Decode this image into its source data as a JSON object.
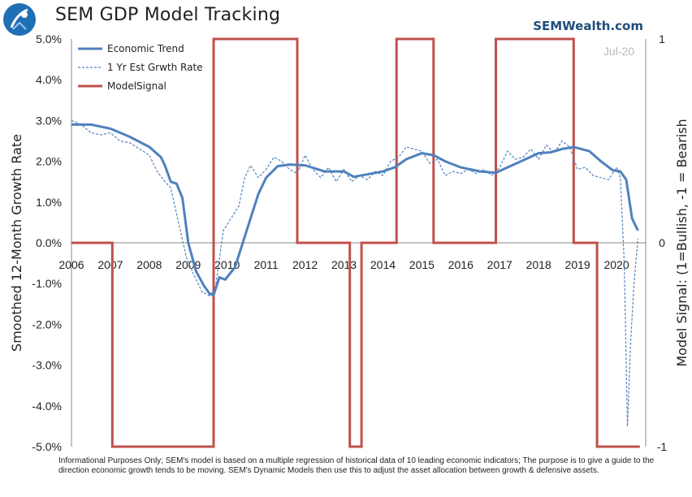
{
  "header": {
    "title": "SEM GDP Model Tracking",
    "brand": "SEMWealth.com"
  },
  "footnote": "Informational Purposes Only; SEM's model is based on a multiple regression of historical data of 10 leading economic indicators; The purpose is to give a guide to the direction economic growth tends to be moving. SEM's Dynamic Models then use this to adjust the asset allocation between growth & defensive assets.",
  "colors": {
    "trend": "#4f81bd",
    "estimate": "#4f81bd",
    "signal": "#c0504d",
    "axis": "#888888",
    "brand": "#1f4e79"
  },
  "chart_data": {
    "type": "line",
    "date_label": "Jul-20",
    "ylabel": "Smoothed 12-Month Growth Rate",
    "y2label": "Model Signal: (1=Bullish, -1 = Bearish",
    "ylim": [
      -5.0,
      5.0
    ],
    "y2lim": [
      -1,
      1
    ],
    "xlim": [
      2006.0,
      2020.75
    ],
    "yticks": [
      "5.0%",
      "4.0%",
      "3.0%",
      "2.0%",
      "1.0%",
      "0.0%",
      "-1.0%",
      "-2.0%",
      "-3.0%",
      "-4.0%",
      "-5.0%"
    ],
    "y2ticks": [
      "1",
      "0",
      "-1"
    ],
    "xticks": [
      "2006",
      "2007",
      "2008",
      "2009",
      "2010",
      "2011",
      "2012",
      "2013",
      "2014",
      "2015",
      "2016",
      "2017",
      "2018",
      "2019",
      "2020"
    ],
    "legend_position": "top-left",
    "grid": false,
    "series": [
      {
        "name": "Economic Trend",
        "style": "solid",
        "axis": "left",
        "x": [
          2006.0,
          2006.5,
          2007.0,
          2007.5,
          2008.0,
          2008.3,
          2008.4,
          2008.55,
          2008.7,
          2008.85,
          2009.0,
          2009.2,
          2009.4,
          2009.55,
          2009.65,
          2009.8,
          2009.95,
          2010.2,
          2010.5,
          2010.8,
          2011.0,
          2011.3,
          2011.6,
          2012.0,
          2012.5,
          2013.0,
          2013.25,
          2013.6,
          2014.0,
          2014.3,
          2014.6,
          2015.0,
          2015.3,
          2015.6,
          2016.0,
          2016.5,
          2016.9,
          2017.2,
          2017.5,
          2018.0,
          2018.3,
          2018.6,
          2018.9,
          2019.3,
          2019.6,
          2019.9,
          2020.1,
          2020.25,
          2020.4,
          2020.55
        ],
        "y": [
          2.9,
          2.9,
          2.8,
          2.6,
          2.35,
          2.1,
          1.9,
          1.5,
          1.45,
          1.1,
          0.0,
          -0.7,
          -1.05,
          -1.25,
          -1.28,
          -0.85,
          -0.9,
          -0.6,
          0.3,
          1.2,
          1.6,
          1.88,
          1.92,
          1.9,
          1.75,
          1.75,
          1.62,
          1.68,
          1.75,
          1.85,
          2.05,
          2.2,
          2.15,
          2.0,
          1.85,
          1.75,
          1.72,
          1.85,
          1.98,
          2.2,
          2.22,
          2.3,
          2.35,
          2.25,
          2.0,
          1.78,
          1.75,
          1.55,
          0.6,
          0.3
        ]
      },
      {
        "name": "1 Yr Est Grwth Rate",
        "style": "dashed",
        "axis": "left",
        "x": [
          2006.0,
          2006.25,
          2006.5,
          2006.75,
          2007.0,
          2007.25,
          2007.5,
          2007.75,
          2008.0,
          2008.2,
          2008.4,
          2008.55,
          2008.75,
          2008.95,
          2009.15,
          2009.35,
          2009.55,
          2009.7,
          2009.9,
          2010.1,
          2010.3,
          2010.45,
          2010.6,
          2010.8,
          2011.0,
          2011.2,
          2011.4,
          2011.6,
          2011.8,
          2012.0,
          2012.2,
          2012.4,
          2012.6,
          2012.8,
          2013.0,
          2013.2,
          2013.4,
          2013.6,
          2013.8,
          2014.0,
          2014.2,
          2014.4,
          2014.6,
          2014.8,
          2015.0,
          2015.2,
          2015.4,
          2015.6,
          2015.8,
          2016.0,
          2016.2,
          2016.4,
          2016.6,
          2016.8,
          2017.0,
          2017.2,
          2017.4,
          2017.6,
          2017.8,
          2018.0,
          2018.2,
          2018.4,
          2018.6,
          2018.8,
          2019.0,
          2019.2,
          2019.4,
          2019.6,
          2019.8,
          2020.0,
          2020.1,
          2020.2,
          2020.28,
          2020.36,
          2020.45,
          2020.55
        ],
        "y": [
          3.0,
          2.9,
          2.7,
          2.65,
          2.7,
          2.5,
          2.45,
          2.3,
          2.15,
          1.75,
          1.5,
          1.35,
          0.5,
          -0.35,
          -0.8,
          -1.2,
          -1.3,
          -1.1,
          0.3,
          0.6,
          0.9,
          1.6,
          1.9,
          1.6,
          1.8,
          2.1,
          2.0,
          1.8,
          1.7,
          2.15,
          1.8,
          1.6,
          1.85,
          1.5,
          1.8,
          1.5,
          1.65,
          1.55,
          1.75,
          1.65,
          2.0,
          2.1,
          2.35,
          2.3,
          2.25,
          1.95,
          2.05,
          1.65,
          1.75,
          1.7,
          1.8,
          1.7,
          1.8,
          1.65,
          1.85,
          2.25,
          2.05,
          2.1,
          2.3,
          2.05,
          2.4,
          2.2,
          2.5,
          2.35,
          1.8,
          1.85,
          1.65,
          1.6,
          1.55,
          1.85,
          1.6,
          -0.5,
          -4.5,
          -2.5,
          -1.0,
          0.1
        ]
      },
      {
        "name": "ModelSignal",
        "style": "solid",
        "axis": "right",
        "x": [
          2006.0,
          2007.05,
          2007.05,
          2009.65,
          2009.65,
          2011.8,
          2011.8,
          2013.15,
          2013.15,
          2013.45,
          2013.45,
          2014.35,
          2014.35,
          2015.3,
          2015.3,
          2016.9,
          2016.9,
          2018.9,
          2018.9,
          2019.5,
          2019.5,
          2020.6
        ],
        "y": [
          0,
          0,
          -1,
          -1,
          1,
          1,
          0,
          0,
          -1,
          -1,
          0,
          0,
          1,
          1,
          0,
          0,
          1,
          1,
          0,
          0,
          -1,
          -1
        ]
      }
    ]
  }
}
